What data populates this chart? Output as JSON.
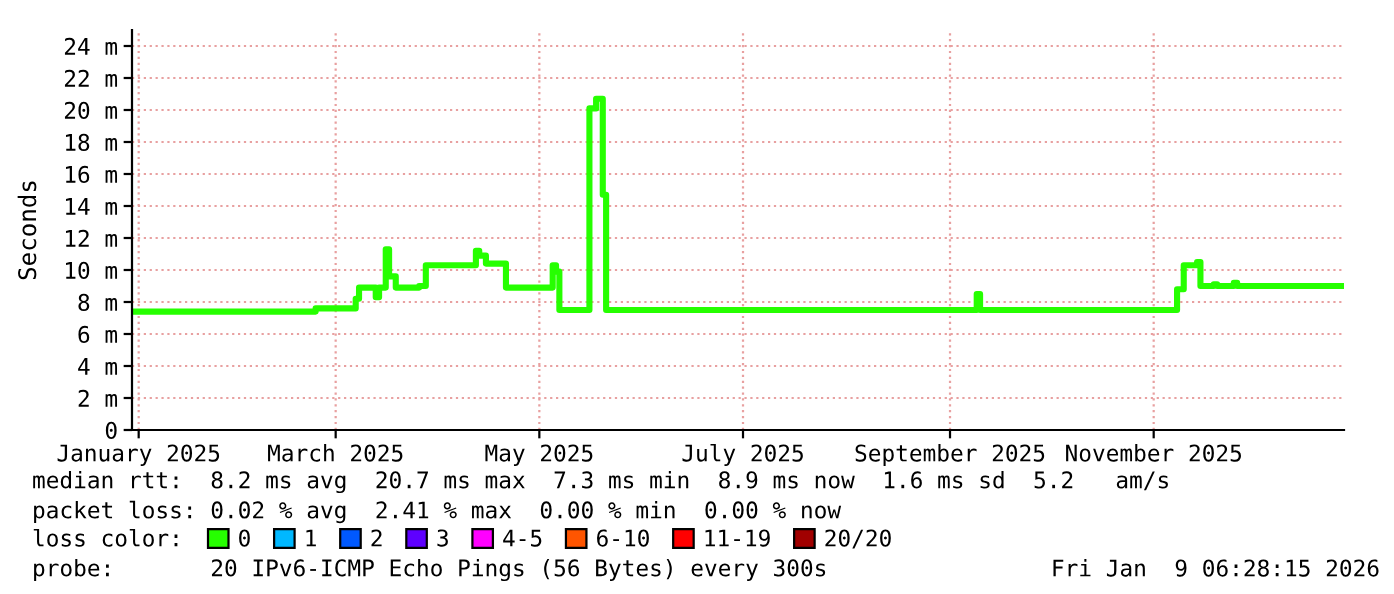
{
  "chart_data": {
    "type": "step",
    "ylabel": "Seconds",
    "legend_title": "loss color:",
    "legend": "bottom",
    "grid": true,
    "line_style": "solid",
    "marker": "none",
    "xlim": [
      "2024-12-30",
      "2025-12-28"
    ],
    "xticks": [
      {
        "value": "2025-01-01",
        "label": "January 2025"
      },
      {
        "value": "2025-03-01",
        "label": "March 2025"
      },
      {
        "value": "2025-05-01",
        "label": "May 2025"
      },
      {
        "value": "2025-07-01",
        "label": "July 2025"
      },
      {
        "value": "2025-09-01",
        "label": "September 2025"
      },
      {
        "value": "2025-11-01",
        "label": "November 2025"
      }
    ],
    "ylim": [
      0,
      25
    ],
    "yticks": [
      0,
      {
        "value": 2,
        "label": "2 m"
      },
      {
        "value": 4,
        "label": "4 m"
      },
      {
        "value": 6,
        "label": "6 m"
      },
      {
        "value": 8,
        "label": "8 m"
      },
      {
        "value": 10,
        "label": "10 m"
      },
      {
        "value": 12,
        "label": "12 m"
      },
      {
        "value": 14,
        "label": "14 m"
      },
      {
        "value": 16,
        "label": "16 m"
      },
      {
        "value": 18,
        "label": "18 m"
      },
      {
        "value": 20,
        "label": "20 m"
      },
      {
        "value": 22,
        "label": "22 m"
      },
      {
        "value": 24,
        "label": "24 m"
      }
    ],
    "series": [
      {
        "name": "0",
        "color": "#26ff00",
        "x": [
          "2024-12-30",
          "2025-02-23",
          "2025-03-07",
          "2025-03-08",
          "2025-03-13",
          "2025-03-14",
          "2025-03-16",
          "2025-03-17",
          "2025-03-19",
          "2025-03-26",
          "2025-03-28",
          "2025-04-12",
          "2025-04-13",
          "2025-04-15",
          "2025-04-21",
          "2025-05-05",
          "2025-05-06",
          "2025-05-07",
          "2025-05-16",
          "2025-05-18",
          "2025-05-20",
          "2025-05-21",
          "2025-09-09",
          "2025-09-10",
          "2025-11-08",
          "2025-11-10",
          "2025-11-14",
          "2025-11-15",
          "2025-11-19",
          "2025-11-20",
          "2025-11-25",
          "2025-11-26",
          "2025-12-28"
        ],
        "values": [
          7.4,
          7.6,
          8.2,
          8.9,
          8.3,
          8.9,
          11.3,
          9.6,
          8.9,
          9.0,
          10.3,
          11.2,
          10.9,
          10.4,
          8.9,
          10.3,
          9.9,
          7.5,
          20.1,
          20.7,
          14.7,
          7.5,
          8.5,
          7.5,
          8.8,
          10.3,
          10.5,
          9.0,
          9.1,
          9.0,
          9.2,
          9.0,
          9.0
        ]
      },
      {
        "name": "1",
        "color": "#00b8ff"
      },
      {
        "name": "2",
        "color": "#0059ff"
      },
      {
        "name": "3",
        "color": "#5e00ff"
      },
      {
        "name": "4-5",
        "color": "#ff00ff"
      },
      {
        "name": "6-10",
        "color": "#ff5500"
      },
      {
        "name": "11-19",
        "color": "#ff0000"
      },
      {
        "name": "20/20",
        "color": "#a10000"
      }
    ],
    "annotations": [
      "median rtt:  8.2 ms avg  20.7 ms max  7.3 ms min  8.9 ms now  1.6 ms sd  5.2   am/s",
      "packet loss: 0.02 % avg  2.41 % max  0.00 % min  0.00 % now",
      "probe:       20 IPv6-ICMP Echo Pings (56 Bytes) every 300s",
      "Fri Jan  9 06:28:15 2026"
    ]
  }
}
